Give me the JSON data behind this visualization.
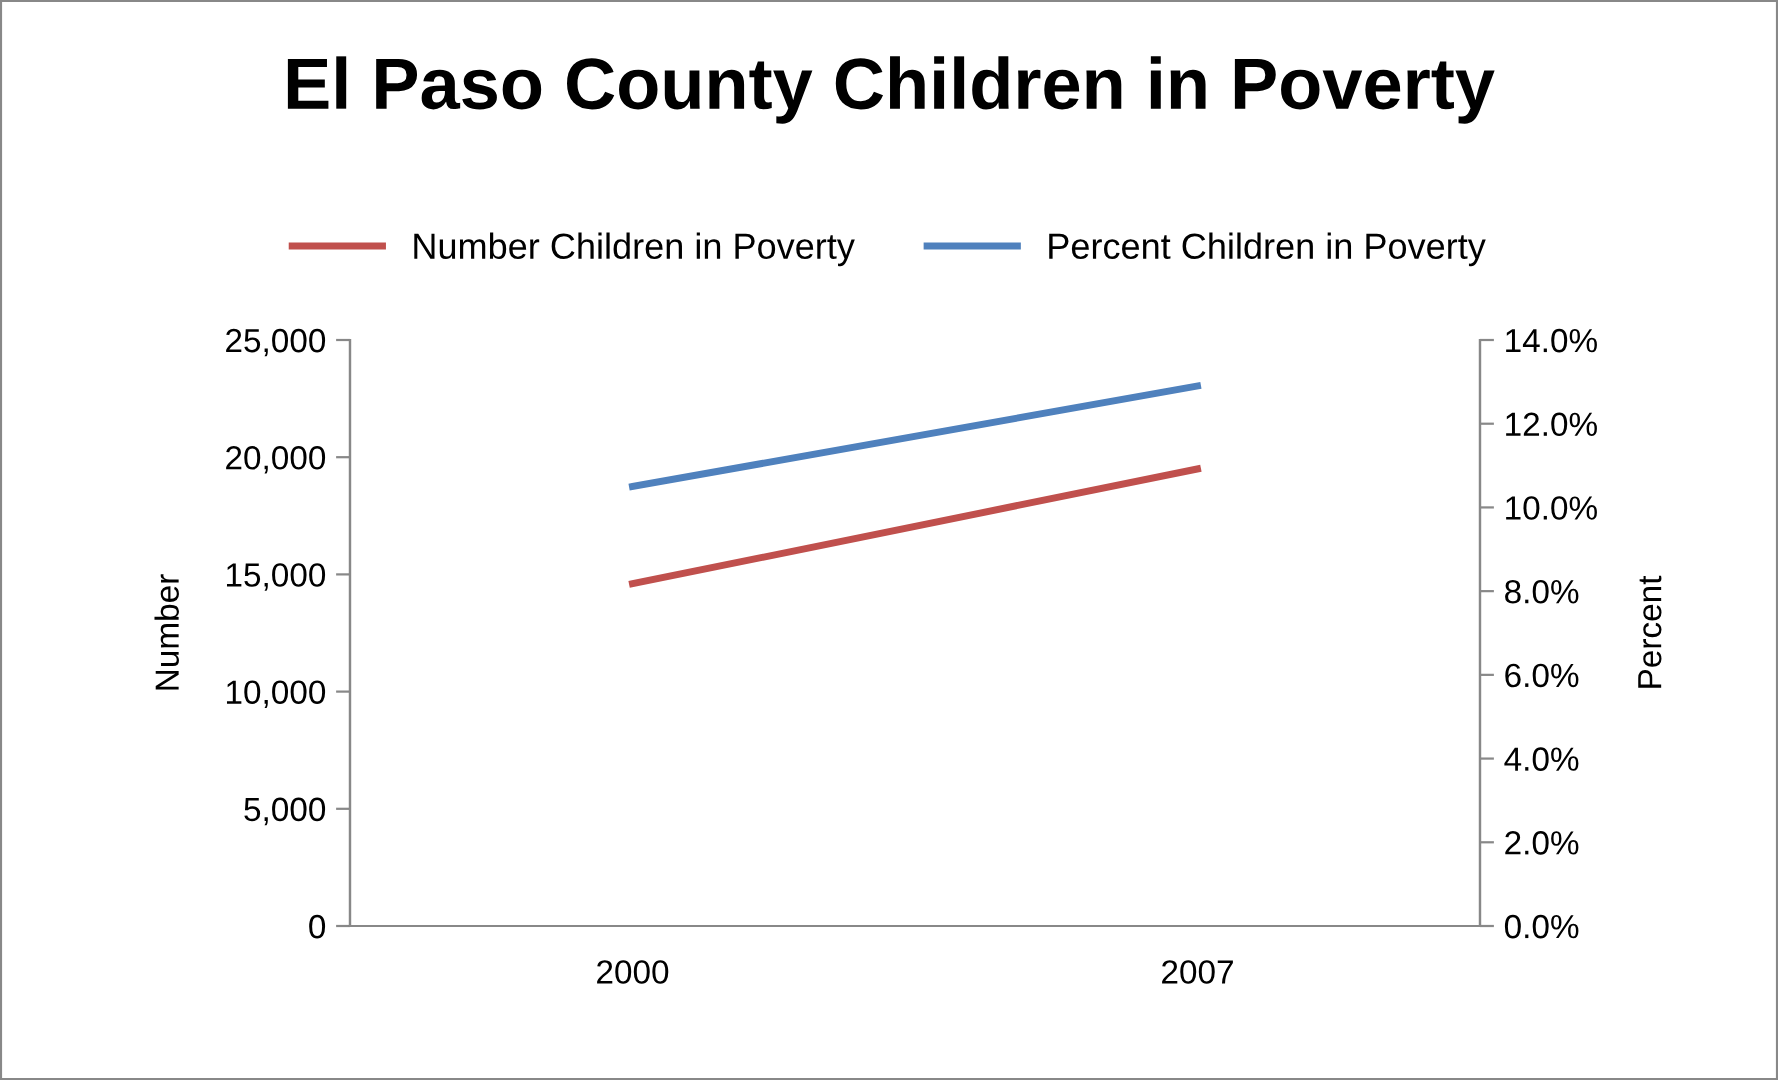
{
  "chart_data": {
    "type": "line",
    "title": "El Paso County Children in Poverty",
    "categories": [
      "2000",
      "2007"
    ],
    "series": [
      {
        "name": "Number Children in Poverty",
        "color": "#c0504d",
        "values": [
          14600,
          19500
        ]
      },
      {
        "name": "Percent Children in Poverty",
        "color": "#4f81bd",
        "values": [
          10.5,
          12.9
        ],
        "axis": "y2"
      }
    ],
    "ylabel": "Number",
    "y2label": "Percent",
    "ylim": [
      0,
      25000
    ],
    "yticks": [
      {
        "value": 0,
        "label": "0"
      },
      {
        "value": 5000,
        "label": "5,000"
      },
      {
        "value": 10000,
        "label": "10,000"
      },
      {
        "value": 15000,
        "label": "15,000"
      },
      {
        "value": 20000,
        "label": "20,000"
      },
      {
        "value": 25000,
        "label": "25,000"
      }
    ],
    "y2lim": [
      0,
      14
    ],
    "y2ticks": [
      {
        "value": 0,
        "label": "0.0%"
      },
      {
        "value": 2,
        "label": "2.0%"
      },
      {
        "value": 4,
        "label": "4.0%"
      },
      {
        "value": 6,
        "label": "6.0%"
      },
      {
        "value": 8,
        "label": "8.0%"
      },
      {
        "value": 10,
        "label": "10.0%"
      },
      {
        "value": 12,
        "label": "12.0%"
      },
      {
        "value": 14,
        "label": "14.0%"
      }
    ],
    "legend": "top",
    "grid": false,
    "marker": "none",
    "line_style": "solid"
  }
}
